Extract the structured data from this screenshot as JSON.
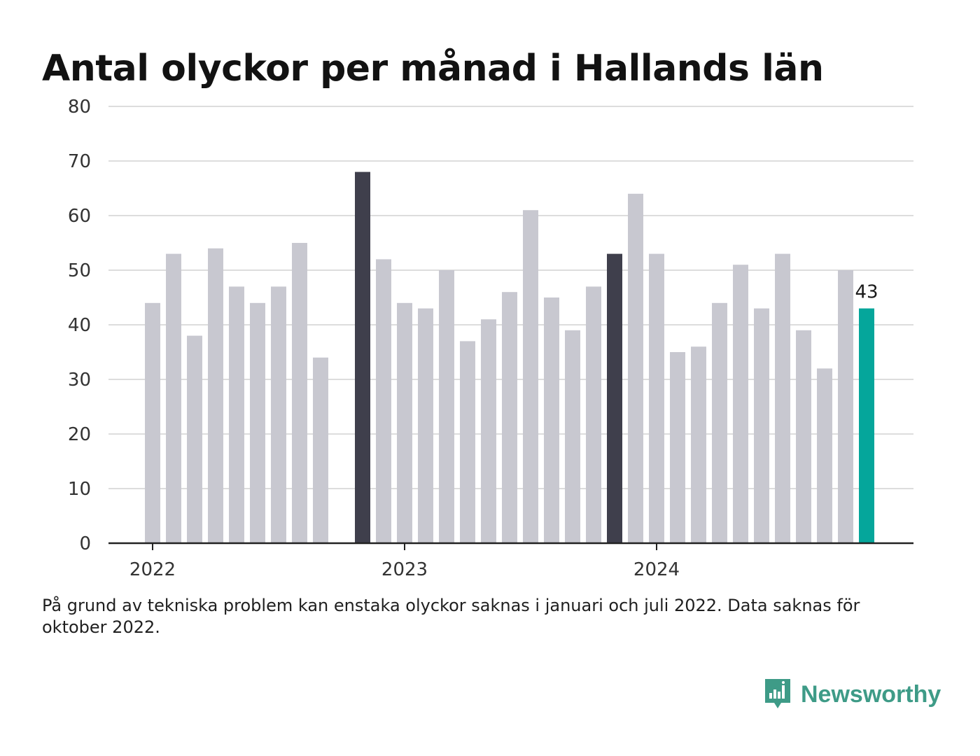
{
  "title": "Antal olyckor per månad i Hallands län",
  "note": "På grund av tekniska problem kan enstaka olyckor saknas i januari och juli 2022. Data saknas för oktober 2022.",
  "brand": {
    "name": "Newsworthy",
    "icon": "newsworthy-logo-icon"
  },
  "colors": {
    "bar": "#c8c8d0",
    "january": "#3f3f4c",
    "latest": "#05a69b",
    "grid": "#dddddd",
    "axis": "#222222"
  },
  "chart_data": {
    "type": "bar",
    "title": "Antal olyckor per månad i Hallands län",
    "xlabel": "",
    "ylabel": "",
    "ylim": [
      0,
      80
    ],
    "yticks": [
      0,
      10,
      20,
      30,
      40,
      50,
      60,
      70,
      80
    ],
    "year_ticks": [
      "2022",
      "2023",
      "2024"
    ],
    "grid": true,
    "categories": [
      "2022-01",
      "2022-02",
      "2022-03",
      "2022-04",
      "2022-05",
      "2022-06",
      "2022-07",
      "2022-08",
      "2022-09",
      "2022-10",
      "2022-11",
      "2022-12",
      "2023-01",
      "2023-02",
      "2023-03",
      "2023-04",
      "2023-05",
      "2023-06",
      "2023-07",
      "2023-08",
      "2023-09",
      "2023-10",
      "2023-11",
      "2023-12",
      "2024-01",
      "2024-02",
      "2024-03",
      "2024-04",
      "2024-05",
      "2024-06",
      "2024-07",
      "2024-08",
      "2024-09",
      "2024-10",
      "2024-11",
      "2024-12"
    ],
    "values": [
      44,
      53,
      38,
      54,
      47,
      44,
      47,
      55,
      34,
      null,
      68,
      52,
      44,
      43,
      50,
      37,
      41,
      46,
      61,
      45,
      39,
      47,
      53,
      64,
      53,
      35,
      36,
      44,
      51,
      43,
      53,
      39,
      32,
      50,
      43,
      null
    ],
    "highlight": {
      "dark": [
        10,
        22
      ],
      "accent": 34
    },
    "data_labels": [
      {
        "index": 34,
        "text": "43"
      }
    ]
  }
}
